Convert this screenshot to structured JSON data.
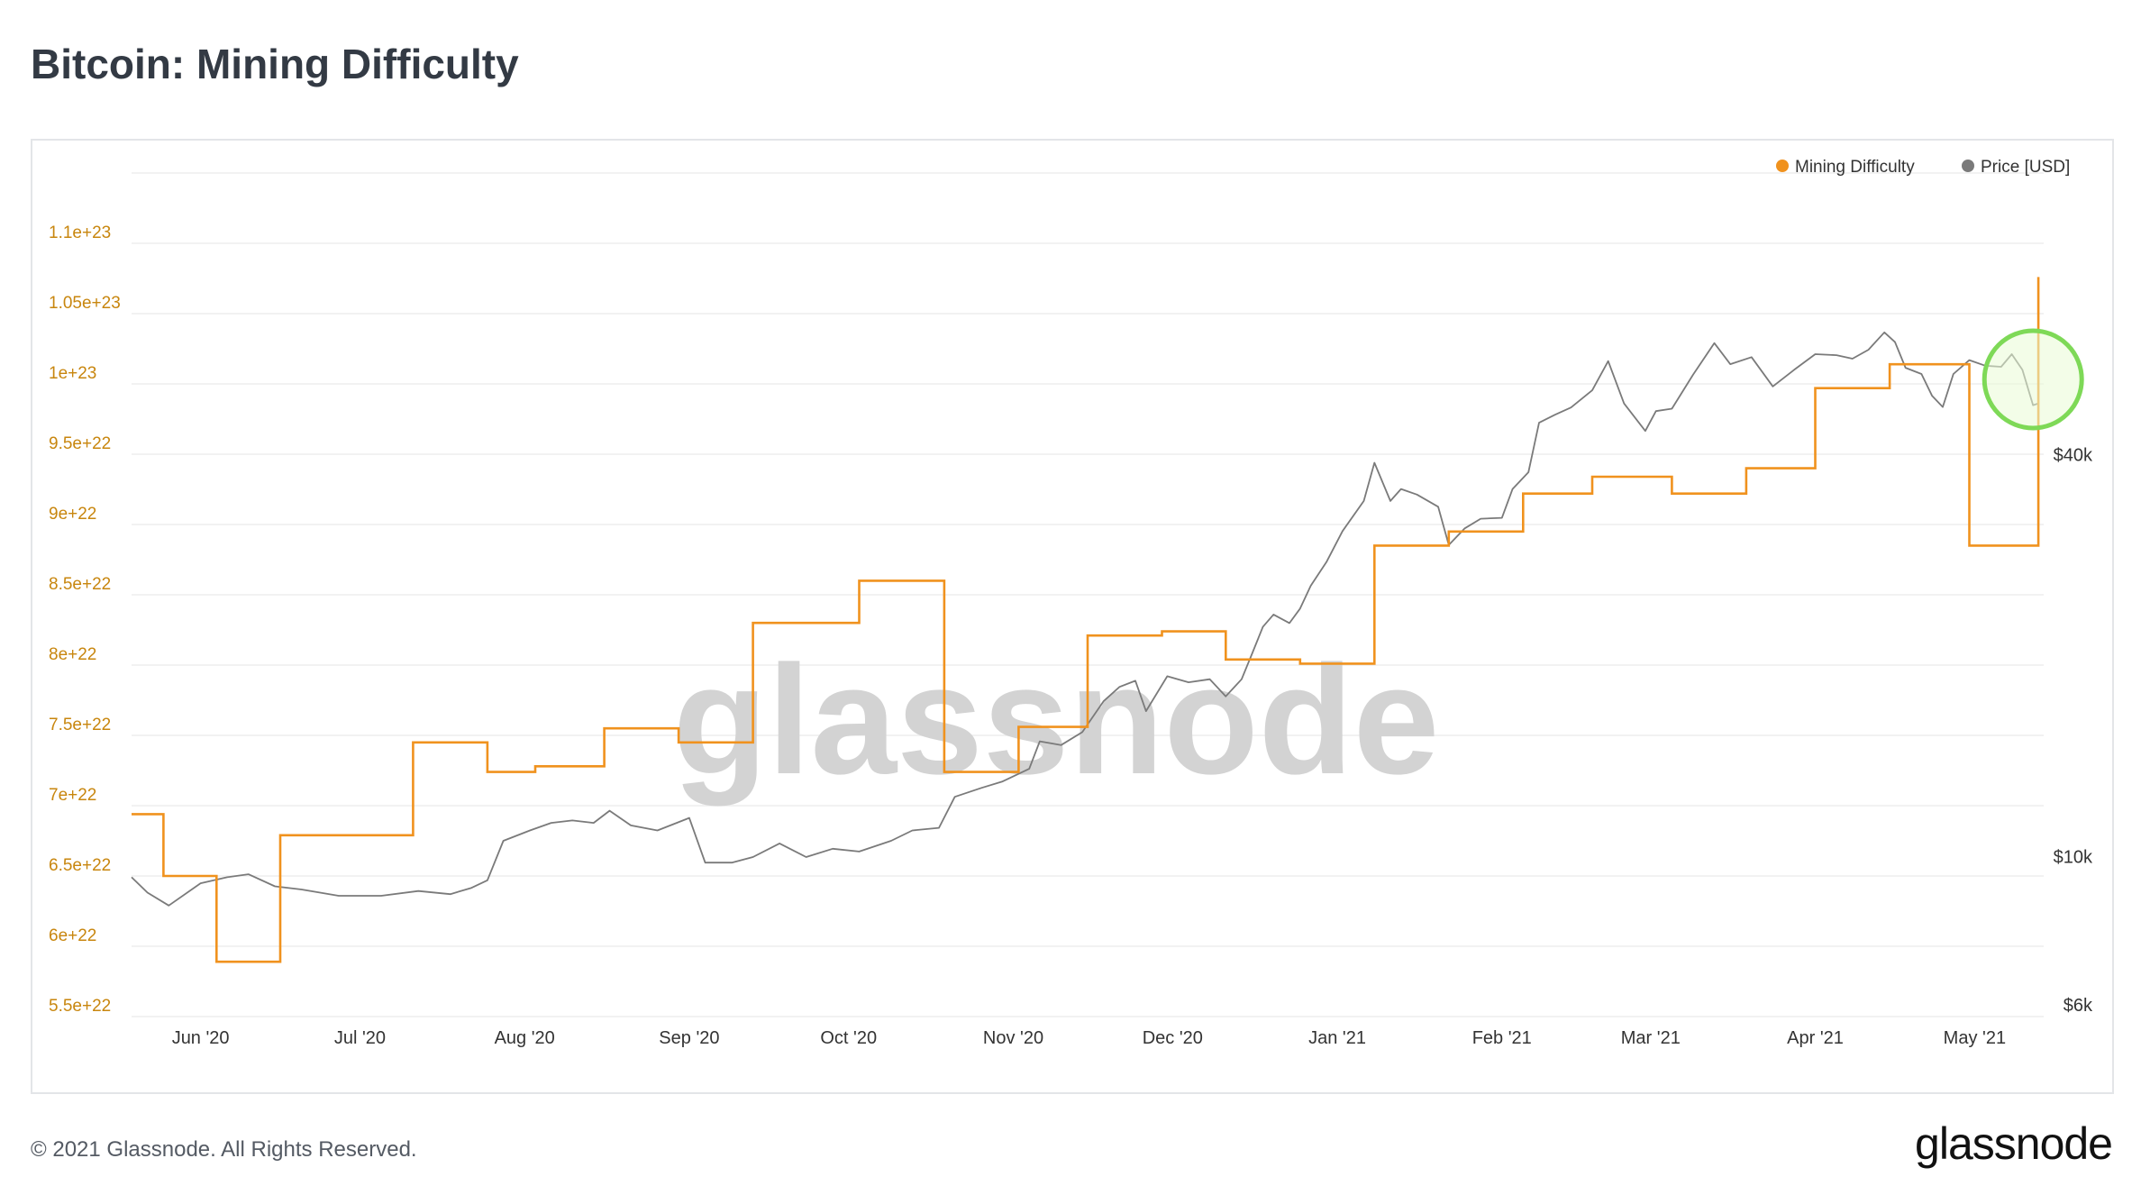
{
  "page": {
    "title": "Bitcoin: Mining Difficulty",
    "footer": "© 2021 Glassnode. All Rights Reserved.",
    "brand": "glassnode",
    "watermark": "glassnode"
  },
  "colors": {
    "difficulty": "#f0921e",
    "difficulty_label": "#c8860e",
    "price": "#7a7a7a",
    "grid": "#eeeeee",
    "highlight": "#7ed957",
    "highlight_fill": "#eafbd6",
    "watermark": "#d3d3d3"
  },
  "chart_data": {
    "type": "line",
    "title": "Bitcoin: Mining Difficulty",
    "x_range": [
      "2020-05-19",
      "2021-05-14"
    ],
    "x_ticks": [
      {
        "date": "2020-06-01",
        "label": "Jun '20"
      },
      {
        "date": "2020-07-01",
        "label": "Jul '20"
      },
      {
        "date": "2020-08-01",
        "label": "Aug '20"
      },
      {
        "date": "2020-09-01",
        "label": "Sep '20"
      },
      {
        "date": "2020-10-01",
        "label": "Oct '20"
      },
      {
        "date": "2020-11-01",
        "label": "Nov '20"
      },
      {
        "date": "2020-12-01",
        "label": "Dec '20"
      },
      {
        "date": "2021-01-01",
        "label": "Jan '21"
      },
      {
        "date": "2021-02-01",
        "label": "Feb '21"
      },
      {
        "date": "2021-03-01",
        "label": "Mar '21"
      },
      {
        "date": "2021-04-01",
        "label": "Apr '21"
      },
      {
        "date": "2021-05-01",
        "label": "May '21"
      }
    ],
    "left_axis": {
      "range": [
        5.5e+22,
        1.15e+23
      ],
      "ticks": [
        {
          "value": 5.5e+22,
          "label": "5.5e+22"
        },
        {
          "value": 6e+22,
          "label": "6e+22"
        },
        {
          "value": 6.5e+22,
          "label": "6.5e+22"
        },
        {
          "value": 7e+22,
          "label": "7e+22"
        },
        {
          "value": 7.5e+22,
          "label": "7.5e+22"
        },
        {
          "value": 8e+22,
          "label": "8e+22"
        },
        {
          "value": 8.5e+22,
          "label": "8.5e+22"
        },
        {
          "value": 9e+22,
          "label": "9e+22"
        },
        {
          "value": 9.5e+22,
          "label": "9.5e+22"
        },
        {
          "value": 1e+23,
          "label": "1e+23"
        },
        {
          "value": 1.05e+23,
          "label": "1.05e+23"
        },
        {
          "value": 1.1e+23,
          "label": "1.1e+23"
        }
      ]
    },
    "right_axis": {
      "scale": "log",
      "range": [
        6000,
        110000
      ],
      "ticks": [
        {
          "value": 6000,
          "label": "$6k"
        },
        {
          "value": 10000,
          "label": "$10k"
        },
        {
          "value": 40000,
          "label": "$40k"
        }
      ]
    },
    "legend": {
      "placement": "top-right"
    },
    "series": [
      {
        "name": "Mining Difficulty",
        "axis": "left",
        "step": true,
        "points": [
          [
            "2020-05-19",
            6.94e+22
          ],
          [
            "2020-05-25",
            6.5e+22
          ],
          [
            "2020-06-04",
            5.89e+22
          ],
          [
            "2020-06-16",
            6.79e+22
          ],
          [
            "2020-07-11",
            7.45e+22
          ],
          [
            "2020-07-25",
            7.24e+22
          ],
          [
            "2020-08-03",
            7.28e+22
          ],
          [
            "2020-08-16",
            7.55e+22
          ],
          [
            "2020-08-30",
            7.45e+22
          ],
          [
            "2020-09-13",
            8.3e+22
          ],
          [
            "2020-10-03",
            8.6e+22
          ],
          [
            "2020-10-19",
            7.24e+22
          ],
          [
            "2020-11-02",
            7.56e+22
          ],
          [
            "2020-11-15",
            8.21e+22
          ],
          [
            "2020-11-29",
            8.24e+22
          ],
          [
            "2020-12-11",
            8.04e+22
          ],
          [
            "2020-12-25",
            8.01e+22
          ],
          [
            "2021-01-08",
            8.85e+22
          ],
          [
            "2021-01-22",
            8.95e+22
          ],
          [
            "2021-02-05",
            9.22e+22
          ],
          [
            "2021-02-18",
            9.34e+22
          ],
          [
            "2021-03-05",
            9.22e+22
          ],
          [
            "2021-03-19",
            9.4e+22
          ],
          [
            "2021-04-01",
            9.97e+22
          ],
          [
            "2021-04-15",
            1.014e+23
          ],
          [
            "2021-04-30",
            8.85e+22
          ],
          [
            "2021-05-13",
            1.076e+23
          ]
        ]
      },
      {
        "name": "Price [USD]",
        "axis": "right",
        "points": [
          [
            "2020-05-19",
            9700
          ],
          [
            "2020-05-22",
            9200
          ],
          [
            "2020-05-26",
            8800
          ],
          [
            "2020-06-01",
            9500
          ],
          [
            "2020-06-06",
            9700
          ],
          [
            "2020-06-10",
            9800
          ],
          [
            "2020-06-15",
            9400
          ],
          [
            "2020-06-20",
            9300
          ],
          [
            "2020-06-27",
            9100
          ],
          [
            "2020-07-05",
            9100
          ],
          [
            "2020-07-12",
            9250
          ],
          [
            "2020-07-18",
            9150
          ],
          [
            "2020-07-22",
            9350
          ],
          [
            "2020-07-25",
            9600
          ],
          [
            "2020-07-28",
            11000
          ],
          [
            "2020-08-02",
            11400
          ],
          [
            "2020-08-06",
            11700
          ],
          [
            "2020-08-10",
            11800
          ],
          [
            "2020-08-14",
            11700
          ],
          [
            "2020-08-17",
            12200
          ],
          [
            "2020-08-21",
            11600
          ],
          [
            "2020-08-26",
            11400
          ],
          [
            "2020-09-01",
            11900
          ],
          [
            "2020-09-04",
            10200
          ],
          [
            "2020-09-09",
            10200
          ],
          [
            "2020-09-13",
            10400
          ],
          [
            "2020-09-18",
            10900
          ],
          [
            "2020-09-23",
            10400
          ],
          [
            "2020-09-28",
            10700
          ],
          [
            "2020-10-03",
            10600
          ],
          [
            "2020-10-09",
            11000
          ],
          [
            "2020-10-13",
            11400
          ],
          [
            "2020-10-18",
            11500
          ],
          [
            "2020-10-21",
            12800
          ],
          [
            "2020-10-26",
            13200
          ],
          [
            "2020-10-30",
            13500
          ],
          [
            "2020-11-04",
            14100
          ],
          [
            "2020-11-06",
            15500
          ],
          [
            "2020-11-10",
            15300
          ],
          [
            "2020-11-14",
            16000
          ],
          [
            "2020-11-18",
            17800
          ],
          [
            "2020-11-21",
            18700
          ],
          [
            "2020-11-24",
            19100
          ],
          [
            "2020-11-26",
            17200
          ],
          [
            "2020-11-30",
            19400
          ],
          [
            "2020-12-04",
            19000
          ],
          [
            "2020-12-08",
            19200
          ],
          [
            "2020-12-11",
            18100
          ],
          [
            "2020-12-14",
            19200
          ],
          [
            "2020-12-16",
            21000
          ],
          [
            "2020-12-18",
            23000
          ],
          [
            "2020-12-20",
            24000
          ],
          [
            "2020-12-23",
            23300
          ],
          [
            "2020-12-25",
            24500
          ],
          [
            "2020-12-27",
            26500
          ],
          [
            "2020-12-30",
            28800
          ],
          [
            "2021-01-02",
            32000
          ],
          [
            "2021-01-06",
            35500
          ],
          [
            "2021-01-08",
            40500
          ],
          [
            "2021-01-11",
            35500
          ],
          [
            "2021-01-13",
            37000
          ],
          [
            "2021-01-16",
            36300
          ],
          [
            "2021-01-20",
            34800
          ],
          [
            "2021-01-22",
            30500
          ],
          [
            "2021-01-25",
            32300
          ],
          [
            "2021-01-28",
            33400
          ],
          [
            "2021-02-01",
            33500
          ],
          [
            "2021-02-03",
            37000
          ],
          [
            "2021-02-06",
            39200
          ],
          [
            "2021-02-08",
            46500
          ],
          [
            "2021-02-11",
            47800
          ],
          [
            "2021-02-14",
            49000
          ],
          [
            "2021-02-18",
            52000
          ],
          [
            "2021-02-21",
            57500
          ],
          [
            "2021-02-24",
            49700
          ],
          [
            "2021-02-28",
            45200
          ],
          [
            "2021-03-02",
            48400
          ],
          [
            "2021-03-05",
            48800
          ],
          [
            "2021-03-09",
            54900
          ],
          [
            "2021-03-13",
            61200
          ],
          [
            "2021-03-16",
            56900
          ],
          [
            "2021-03-20",
            58300
          ],
          [
            "2021-03-24",
            52700
          ],
          [
            "2021-03-28",
            55800
          ],
          [
            "2021-04-01",
            58900
          ],
          [
            "2021-04-05",
            58700
          ],
          [
            "2021-04-08",
            58000
          ],
          [
            "2021-04-11",
            59800
          ],
          [
            "2021-04-14",
            63500
          ],
          [
            "2021-04-16",
            61400
          ],
          [
            "2021-04-18",
            56200
          ],
          [
            "2021-04-21",
            55000
          ],
          [
            "2021-04-23",
            51000
          ],
          [
            "2021-04-25",
            49100
          ],
          [
            "2021-04-27",
            55000
          ],
          [
            "2021-04-30",
            57700
          ],
          [
            "2021-05-03",
            56600
          ],
          [
            "2021-05-06",
            56400
          ],
          [
            "2021-05-08",
            58900
          ],
          [
            "2021-05-10",
            55800
          ],
          [
            "2021-05-12",
            49400
          ],
          [
            "2021-05-13",
            49700
          ]
        ]
      }
    ],
    "annotations": [
      {
        "type": "circle",
        "date": "2021-05-12",
        "price": 54000,
        "description": "green highlight circle"
      }
    ]
  }
}
